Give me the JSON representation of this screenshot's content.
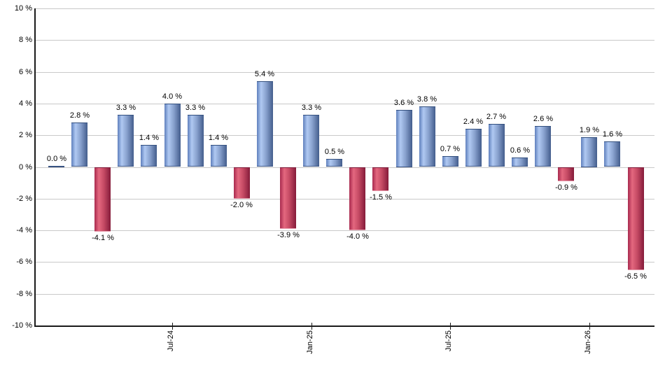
{
  "chart_data": {
    "type": "bar",
    "title": "",
    "xlabel": "",
    "ylabel": "",
    "ylim": [
      -10,
      10
    ],
    "grid": true,
    "legend": "none",
    "values": [
      0.0,
      2.8,
      -4.1,
      3.3,
      1.4,
      4.0,
      3.3,
      1.4,
      -2.0,
      5.4,
      -3.9,
      3.3,
      0.5,
      -4.0,
      -1.5,
      3.6,
      3.8,
      0.7,
      2.4,
      2.7,
      0.6,
      2.6,
      -0.9,
      1.9,
      1.6,
      -6.5
    ],
    "bar_labels": [
      "0.0 %",
      "2.8 %",
      "-4.1 %",
      "3.3 %",
      "1.4 %",
      "4.0 %",
      "3.3 %",
      "1.4 %",
      "-2.0 %",
      "5.4 %",
      "-3.9 %",
      "3.3 %",
      "0.5 %",
      "-4.0 %",
      "-1.5 %",
      "3.6 %",
      "3.8 %",
      "0.7 %",
      "2.4 %",
      "2.7 %",
      "0.6 %",
      "2.6 %",
      "-0.9 %",
      "1.9 %",
      "1.6 %",
      "-6.5 %"
    ],
    "x_ticks": [
      {
        "label": "Jul-24",
        "bar_index": 5
      },
      {
        "label": "Jan-25",
        "bar_index": 11
      },
      {
        "label": "Jul-25",
        "bar_index": 17
      },
      {
        "label": "Jan-26",
        "bar_index": 23
      }
    ],
    "y_ticks": [
      {
        "label": "10 %",
        "value": 10
      },
      {
        "label": "8 %",
        "value": 8
      },
      {
        "label": "6 %",
        "value": 6
      },
      {
        "label": "4 %",
        "value": 4
      },
      {
        "label": "2 %",
        "value": 2
      },
      {
        "label": "0 %",
        "value": 0
      },
      {
        "label": "-2 %",
        "value": -2
      },
      {
        "label": "-4 %",
        "value": -4
      },
      {
        "label": "-6 %",
        "value": -6
      },
      {
        "label": "-8 %",
        "value": -8
      },
      {
        "label": "-10 %",
        "value": -10
      }
    ],
    "colors": {
      "positive_bar": "#6f8fc9",
      "positive_bar_light": "#b0c9f2",
      "positive_bar_dark": "#435d8c",
      "negative_bar": "#c54a64",
      "negative_bar_light": "#e4687f",
      "negative_bar_dark": "#851b3a",
      "gridline": "#c9c9c9",
      "axis": "#1a1a1a",
      "label_text": "#000000",
      "background": "#ffffff"
    }
  }
}
